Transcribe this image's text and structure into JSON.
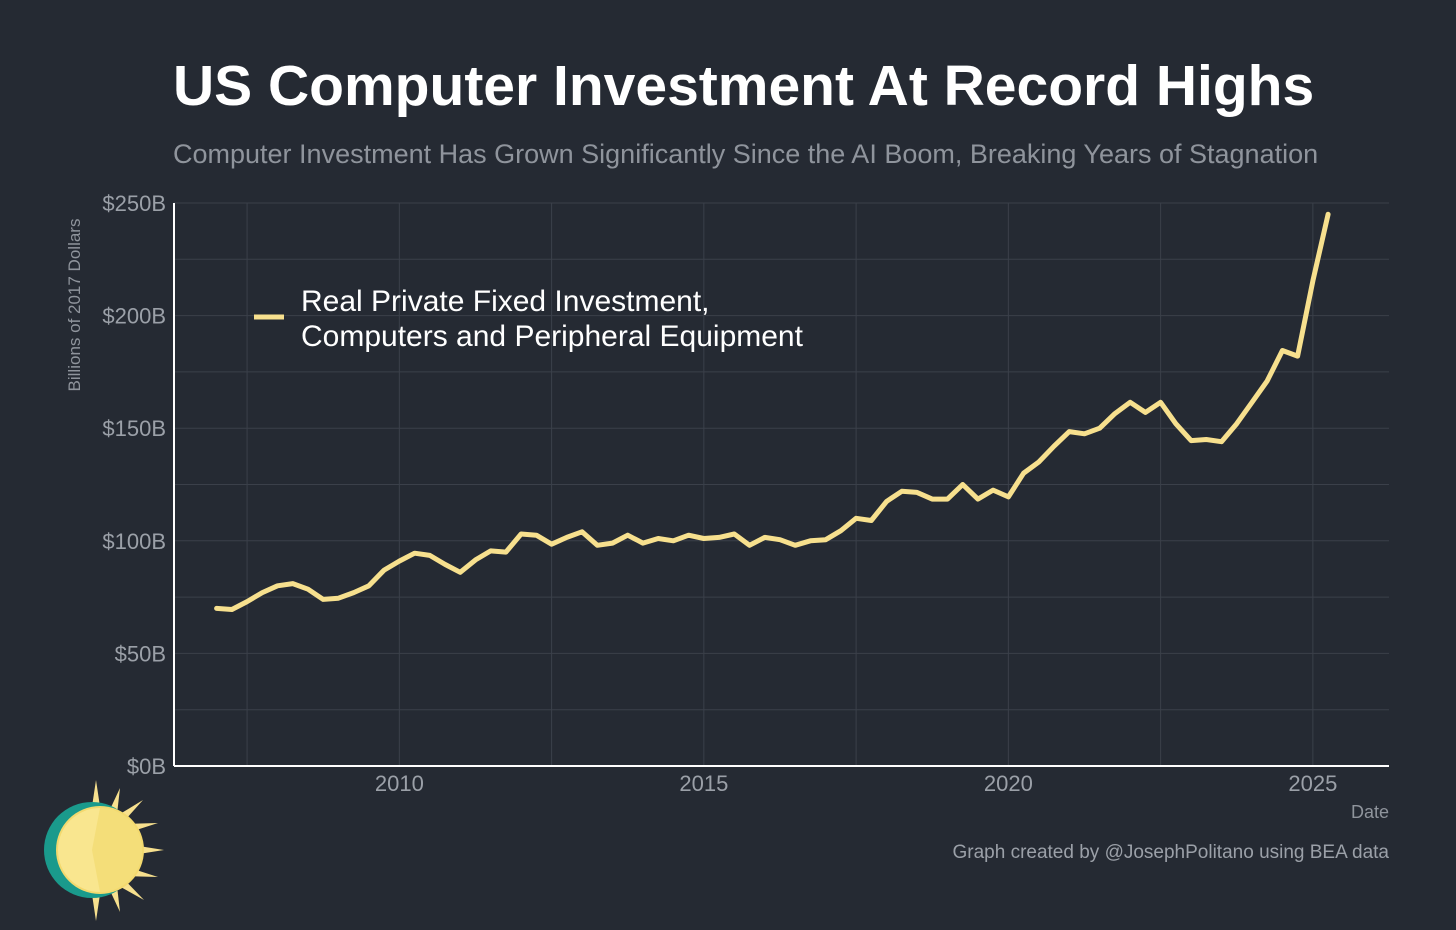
{
  "header": {
    "title": "US Computer Investment At Record Highs",
    "subtitle": "Computer Investment Has Grown Significantly Since the AI Boom, Breaking Years of Stagnation"
  },
  "footer": {
    "caption": "Graph created by @JosephPolitano using BEA data"
  },
  "colors": {
    "background": "#252a33",
    "line": "#f7e08e",
    "grid": "#3b404a",
    "axis": "#ffffff"
  },
  "chart_data": {
    "type": "line",
    "xlabel": "Date",
    "ylabel": "Billions of 2017 Dollars",
    "xlim": [
      2006.3,
      2026.25
    ],
    "ylim": [
      0,
      250
    ],
    "xticks": [
      2010,
      2015,
      2020,
      2025
    ],
    "xtick_labels": [
      "2010",
      "2015",
      "2020",
      "2025"
    ],
    "yticks": [
      0,
      50,
      100,
      150,
      200,
      250
    ],
    "ytick_labels": [
      "$0B",
      "$50B",
      "$100B",
      "$150B",
      "$200B",
      "$250B"
    ],
    "grid": true,
    "legend_position": "top-left",
    "series": [
      {
        "name": "Real Private Fixed Investment, Computers and Peripheral Equipment",
        "x": [
          2007.0,
          2007.25,
          2007.5,
          2007.75,
          2008.0,
          2008.25,
          2008.5,
          2008.75,
          2009.0,
          2009.25,
          2009.5,
          2009.75,
          2010.0,
          2010.25,
          2010.5,
          2010.75,
          2011.0,
          2011.25,
          2011.5,
          2011.75,
          2012.0,
          2012.25,
          2012.5,
          2012.75,
          2013.0,
          2013.25,
          2013.5,
          2013.75,
          2014.0,
          2014.25,
          2014.5,
          2014.75,
          2015.0,
          2015.25,
          2015.5,
          2015.75,
          2016.0,
          2016.25,
          2016.5,
          2016.75,
          2017.0,
          2017.25,
          2017.5,
          2017.75,
          2018.0,
          2018.25,
          2018.5,
          2018.75,
          2019.0,
          2019.25,
          2019.5,
          2019.75,
          2020.0,
          2020.25,
          2020.5,
          2020.75,
          2021.0,
          2021.25,
          2021.5,
          2021.75,
          2022.0,
          2022.25,
          2022.5,
          2022.75,
          2023.0,
          2023.25,
          2023.5,
          2023.75,
          2024.0,
          2024.25,
          2024.5,
          2024.75,
          2025.0,
          2025.25
        ],
        "y": [
          70,
          69.5,
          73,
          77,
          80,
          81,
          78.5,
          74,
          74.5,
          77,
          80,
          87,
          91,
          94.5,
          93.5,
          89.5,
          86,
          91.5,
          95.5,
          95,
          103,
          102.5,
          98.5,
          101.5,
          104,
          98,
          99,
          102.5,
          99,
          101,
          100,
          102.5,
          101,
          101.5,
          103,
          98,
          101.5,
          100.5,
          98,
          100,
          100.5,
          104.5,
          110,
          109,
          117.5,
          122,
          121.5,
          118.5,
          118.5,
          125,
          118.5,
          122.5,
          119.5,
          130,
          135,
          142,
          148.5,
          147.5,
          150,
          156.5,
          161.5,
          157,
          161.5,
          152,
          144.5,
          145,
          144,
          152,
          161.5,
          171,
          184.5,
          182,
          215.5,
          245
        ]
      }
    ]
  }
}
